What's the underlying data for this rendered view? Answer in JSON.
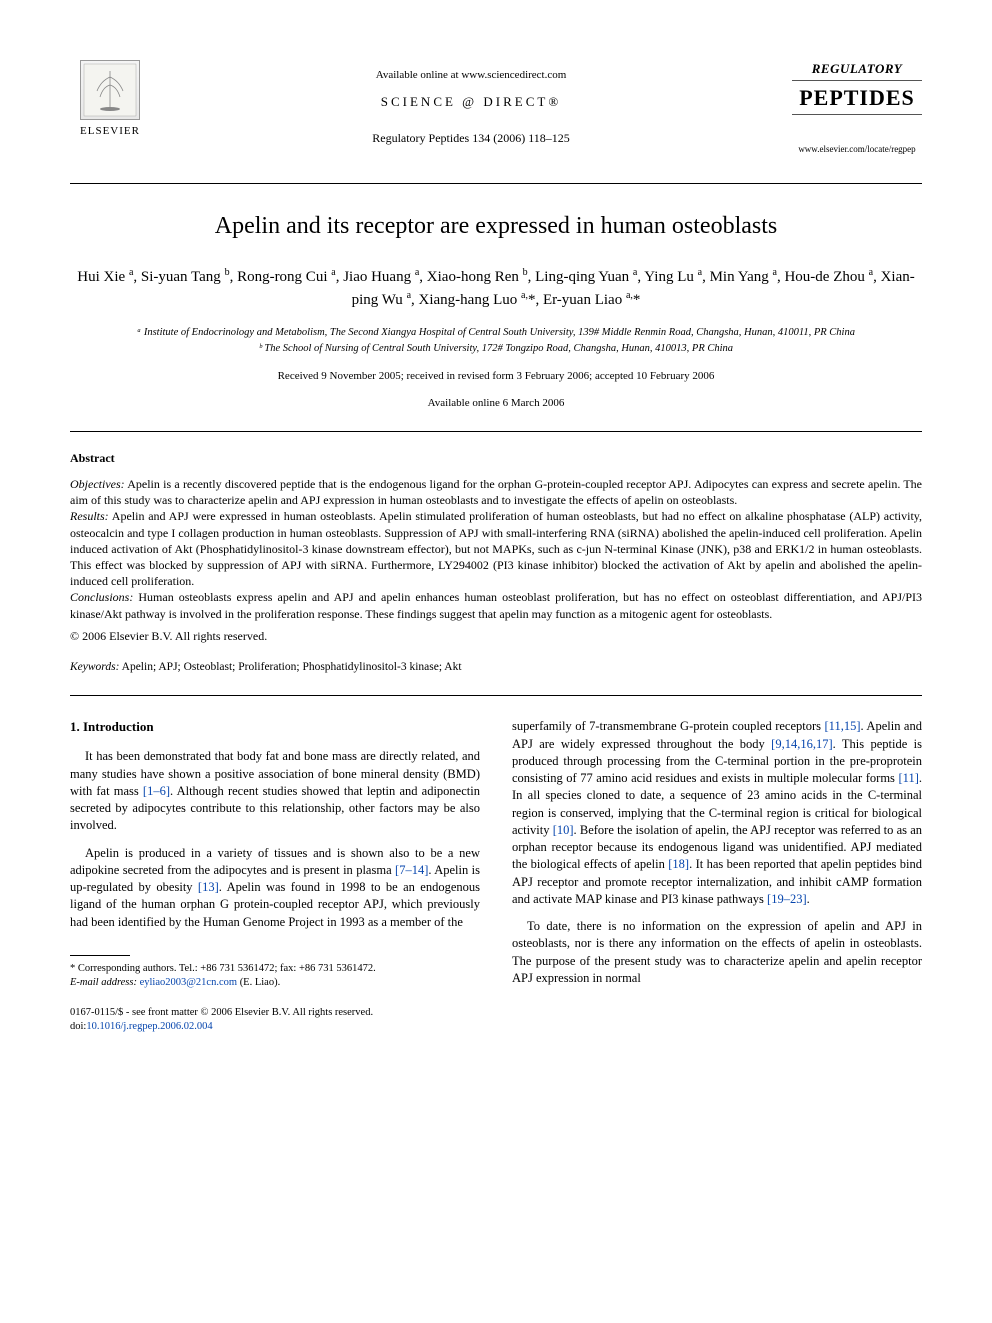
{
  "header": {
    "available_text": "Available online at www.sciencedirect.com",
    "sd_logo_text": "SCIENCE @ DIRECT®",
    "journal_ref": "Regulatory Peptides 134 (2006) 118–125",
    "elsevier_label": "ELSEVIER",
    "journal_cover": {
      "top": "REGULATORY",
      "main": "PEPTIDES",
      "url": "www.elsevier.com/locate/regpep"
    }
  },
  "article": {
    "title": "Apelin and its receptor are expressed in human osteoblasts",
    "authors_html": "Hui Xie <sup>a</sup>, Si-yuan Tang <sup>b</sup>, Rong-rong Cui <sup>a</sup>, Jiao Huang <sup>a</sup>, Xiao-hong Ren <sup>b</sup>, Ling-qing Yuan <sup>a</sup>, Ying Lu <sup>a</sup>, Min Yang <sup>a</sup>, Hou-de Zhou <sup>a</sup>, Xian-ping Wu <sup>a</sup>, Xiang-hang Luo <sup>a,</sup>*, Er-yuan Liao <sup>a,</sup>*",
    "affiliations": [
      "ᵃ Institute of Endocrinology and Metabolism, The Second Xiangya Hospital of Central South University, 139# Middle Renmin Road, Changsha, Hunan, 410011, PR China",
      "ᵇ The School of Nursing of Central South University, 172# Tongzipo Road, Changsha, Hunan, 410013, PR China"
    ],
    "dates_line1": "Received 9 November 2005; received in revised form 3 February 2006; accepted 10 February 2006",
    "dates_line2": "Available online 6 March 2006"
  },
  "abstract": {
    "heading": "Abstract",
    "objectives_label": "Objectives:",
    "objectives_text": " Apelin is a recently discovered peptide that is the endogenous ligand for the orphan G-protein-coupled receptor APJ. Adipocytes can express and secrete apelin. The aim of this study was to characterize apelin and APJ expression in human osteoblasts and to investigate the effects of apelin on osteoblasts.",
    "results_label": "Results:",
    "results_text": " Apelin and APJ were expressed in human osteoblasts. Apelin stimulated proliferation of human osteoblasts, but had no effect on alkaline phosphatase (ALP) activity, osteocalcin and type I collagen production in human osteoblasts. Suppression of APJ with small-interfering RNA (siRNA) abolished the apelin-induced cell proliferation. Apelin induced activation of Akt (Phosphatidylinositol-3 kinase downstream effector), but not MAPKs, such as c-jun N-terminal Kinase (JNK), p38 and ERK1/2 in human osteoblasts. This effect was blocked by suppression of APJ with siRNA. Furthermore, LY294002 (PI3 kinase inhibitor) blocked the activation of Akt by apelin and abolished the apelin-induced cell proliferation.",
    "conclusions_label": "Conclusions:",
    "conclusions_text": " Human osteoblasts express apelin and APJ and apelin enhances human osteoblast proliferation, but has no effect on osteoblast differentiation, and APJ/PI3 kinase/Akt pathway is involved in the proliferation response. These findings suggest that apelin may function as a mitogenic agent for osteoblasts.",
    "copyright": "© 2006 Elsevier B.V. All rights reserved."
  },
  "keywords": {
    "label": "Keywords:",
    "text": " Apelin; APJ; Osteoblast; Proliferation; Phosphatidylinositol-3 kinase; Akt"
  },
  "introduction": {
    "heading": "1. Introduction",
    "left_paragraphs": [
      "It has been demonstrated that body fat and bone mass are directly related, and many studies have shown a positive association of bone mineral density (BMD) with fat mass [1–6]. Although recent studies showed that leptin and adiponectin secreted by adipocytes contribute to this relationship, other factors may be also involved.",
      "Apelin is produced in a variety of tissues and is shown also to be a new adipokine secreted from the adipocytes and is present in plasma [7–14]. Apelin is up-regulated by obesity [13]. Apelin was found in 1998 to be an endogenous ligand of the human orphan G protein-coupled receptor APJ, which previously had been identified by the Human Genome Project in 1993 as a member of the"
    ],
    "right_paragraphs": [
      "superfamily of 7-transmembrane G-protein coupled receptors [11,15]. Apelin and APJ are widely expressed throughout the body [9,14,16,17]. This peptide is produced through processing from the C-terminal portion in the pre-proprotein consisting of 77 amino acid residues and exists in multiple molecular forms [11]. In all species cloned to date, a sequence of 23 amino acids in the C-terminal region is conserved, implying that the C-terminal region is critical for biological activity [10]. Before the isolation of apelin, the APJ receptor was referred to as an orphan receptor because its endogenous ligand was unidentified. APJ mediated the biological effects of apelin [18]. It has been reported that apelin peptides bind APJ receptor and promote receptor internalization, and inhibit cAMP formation and activate MAP kinase and PI3 kinase pathways [19–23].",
      "To date, there is no information on the expression of apelin and APJ in osteoblasts, nor is there any information on the effects of apelin in osteoblasts. The purpose of the present study was to characterize apelin and apelin receptor APJ expression in normal"
    ],
    "ref_links": {
      "r1": "[1–6]",
      "r2": "[7–14]",
      "r3": "[13]",
      "r4": "[11,15]",
      "r5": "[9,14,16,17]",
      "r6": "[11]",
      "r7": "[10]",
      "r8": "[18]",
      "r9": "[19–23]"
    }
  },
  "footnote": {
    "corresponding": "* Corresponding authors. Tel.: +86 731 5361472; fax: +86 731 5361472.",
    "email_label": "E-mail address:",
    "email": " eyliao2003@21cn.com",
    "email_name": " (E. Liao)."
  },
  "footer": {
    "issn_line": "0167-0115/$ - see front matter © 2006 Elsevier B.V. All rights reserved.",
    "doi_label": "doi:",
    "doi": "10.1016/j.regpep.2006.02.004"
  },
  "colors": {
    "link": "#0645ad",
    "text": "#000000",
    "bg": "#ffffff"
  }
}
